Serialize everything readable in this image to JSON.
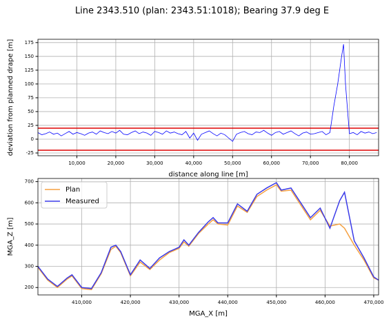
{
  "title": "Line 2343.510 (plan: 2343.51:1018); Bearing 37.9 deg E",
  "chart_data": [
    {
      "type": "line",
      "xlabel": "distance along line [m]",
      "ylabel": "deviation from planned drape [m]",
      "x": [
        0,
        1000,
        2000,
        3000,
        4000,
        5000,
        6000,
        7000,
        8000,
        9000,
        10000,
        11000,
        12000,
        13000,
        14000,
        15000,
        16000,
        17000,
        18000,
        19000,
        20000,
        21000,
        22000,
        23000,
        24000,
        25000,
        26000,
        27000,
        28000,
        29000,
        30000,
        31000,
        32000,
        33000,
        34000,
        35000,
        36000,
        37000,
        38000,
        39000,
        40000,
        41000,
        42000,
        43000,
        44000,
        45000,
        46000,
        47000,
        48000,
        49000,
        50000,
        51000,
        52000,
        53000,
        54000,
        55000,
        56000,
        57000,
        58000,
        59000,
        60000,
        61000,
        62000,
        63000,
        64000,
        65000,
        66000,
        67000,
        68000,
        69000,
        70000,
        71000,
        72000,
        73000,
        74000,
        75000,
        76000,
        77000,
        78000,
        78500,
        79000,
        80000,
        81000,
        82000,
        83000,
        84000,
        85000,
        86000,
        87000
      ],
      "series": [
        {
          "name": "deviation",
          "color": "#0000ff",
          "values": [
            12,
            8,
            10,
            13,
            9,
            11,
            6,
            10,
            14,
            9,
            12,
            10,
            7,
            11,
            13,
            9,
            15,
            12,
            10,
            14,
            11,
            16,
            9,
            8,
            12,
            15,
            10,
            13,
            11,
            7,
            14,
            12,
            9,
            15,
            11,
            13,
            10,
            8,
            14,
            2,
            11,
            -2,
            9,
            12,
            15,
            10,
            6,
            11,
            8,
            2,
            -4,
            9,
            12,
            14,
            10,
            8,
            13,
            12,
            16,
            11,
            7,
            12,
            14,
            9,
            12,
            15,
            10,
            6,
            11,
            13,
            9,
            10,
            12,
            14,
            8,
            12,
            60,
            100,
            150,
            172,
            100,
            10,
            12,
            8,
            14,
            11,
            13,
            10,
            12
          ]
        }
      ],
      "hlines": [
        {
          "value": 20,
          "color": "#dd0000"
        },
        {
          "value": -20,
          "color": "#dd0000"
        }
      ],
      "xlim": [
        0,
        87500
      ],
      "ylim": [
        -30,
        181
      ],
      "xticks": [
        {
          "value": 10000,
          "label": "10,000"
        },
        {
          "value": 20000,
          "label": "20,000"
        },
        {
          "value": 30000,
          "label": "30,000"
        },
        {
          "value": 40000,
          "label": "40,000"
        },
        {
          "value": 50000,
          "label": "50,000"
        },
        {
          "value": 60000,
          "label": "60,000"
        },
        {
          "value": 70000,
          "label": "70,000"
        },
        {
          "value": 80000,
          "label": "80,000"
        }
      ],
      "yticks": [
        -25,
        0,
        25,
        50,
        75,
        100,
        125,
        150,
        175
      ],
      "grid": true
    },
    {
      "type": "line",
      "xlabel": "MGA_X [m]",
      "ylabel": "MGA_Z [m]",
      "legend": "upper left",
      "x": [
        401000,
        403000,
        405000,
        407000,
        408000,
        410000,
        412000,
        414000,
        416000,
        417000,
        418000,
        420000,
        422000,
        424000,
        426000,
        428000,
        430000,
        431000,
        432000,
        434000,
        436000,
        437000,
        438000,
        440000,
        442000,
        444000,
        446000,
        448000,
        450000,
        451000,
        453000,
        455000,
        457000,
        459000,
        461000,
        463000,
        464000,
        466000,
        468000,
        470000,
        471000
      ],
      "series": [
        {
          "name": "Plan",
          "color": "#f5a040",
          "values": [
            295,
            235,
            200,
            240,
            255,
            195,
            190,
            265,
            380,
            395,
            365,
            255,
            320,
            285,
            330,
            365,
            385,
            415,
            395,
            455,
            500,
            520,
            500,
            495,
            585,
            555,
            630,
            660,
            685,
            655,
            660,
            590,
            520,
            565,
            490,
            500,
            480,
            400,
            330,
            245,
            235
          ]
        },
        {
          "name": "Measured",
          "color": "#3a3ae8",
          "values": [
            300,
            240,
            205,
            245,
            260,
            200,
            195,
            270,
            390,
            400,
            370,
            260,
            330,
            290,
            340,
            370,
            390,
            425,
            400,
            460,
            510,
            530,
            505,
            505,
            595,
            560,
            640,
            670,
            695,
            660,
            670,
            600,
            530,
            575,
            480,
            610,
            650,
            420,
            340,
            250,
            235
          ]
        }
      ],
      "xlim": [
        401000,
        471000
      ],
      "ylim": [
        165,
        715
      ],
      "xticks": [
        {
          "value": 410000,
          "label": "410,000"
        },
        {
          "value": 420000,
          "label": "420,000"
        },
        {
          "value": 430000,
          "label": "430,000"
        },
        {
          "value": 440000,
          "label": "440,000"
        },
        {
          "value": 450000,
          "label": "450,000"
        },
        {
          "value": 460000,
          "label": "460,000"
        },
        {
          "value": 470000,
          "label": "470,000"
        }
      ],
      "yticks": [
        200,
        300,
        400,
        500,
        600,
        700
      ],
      "grid": true
    }
  ]
}
